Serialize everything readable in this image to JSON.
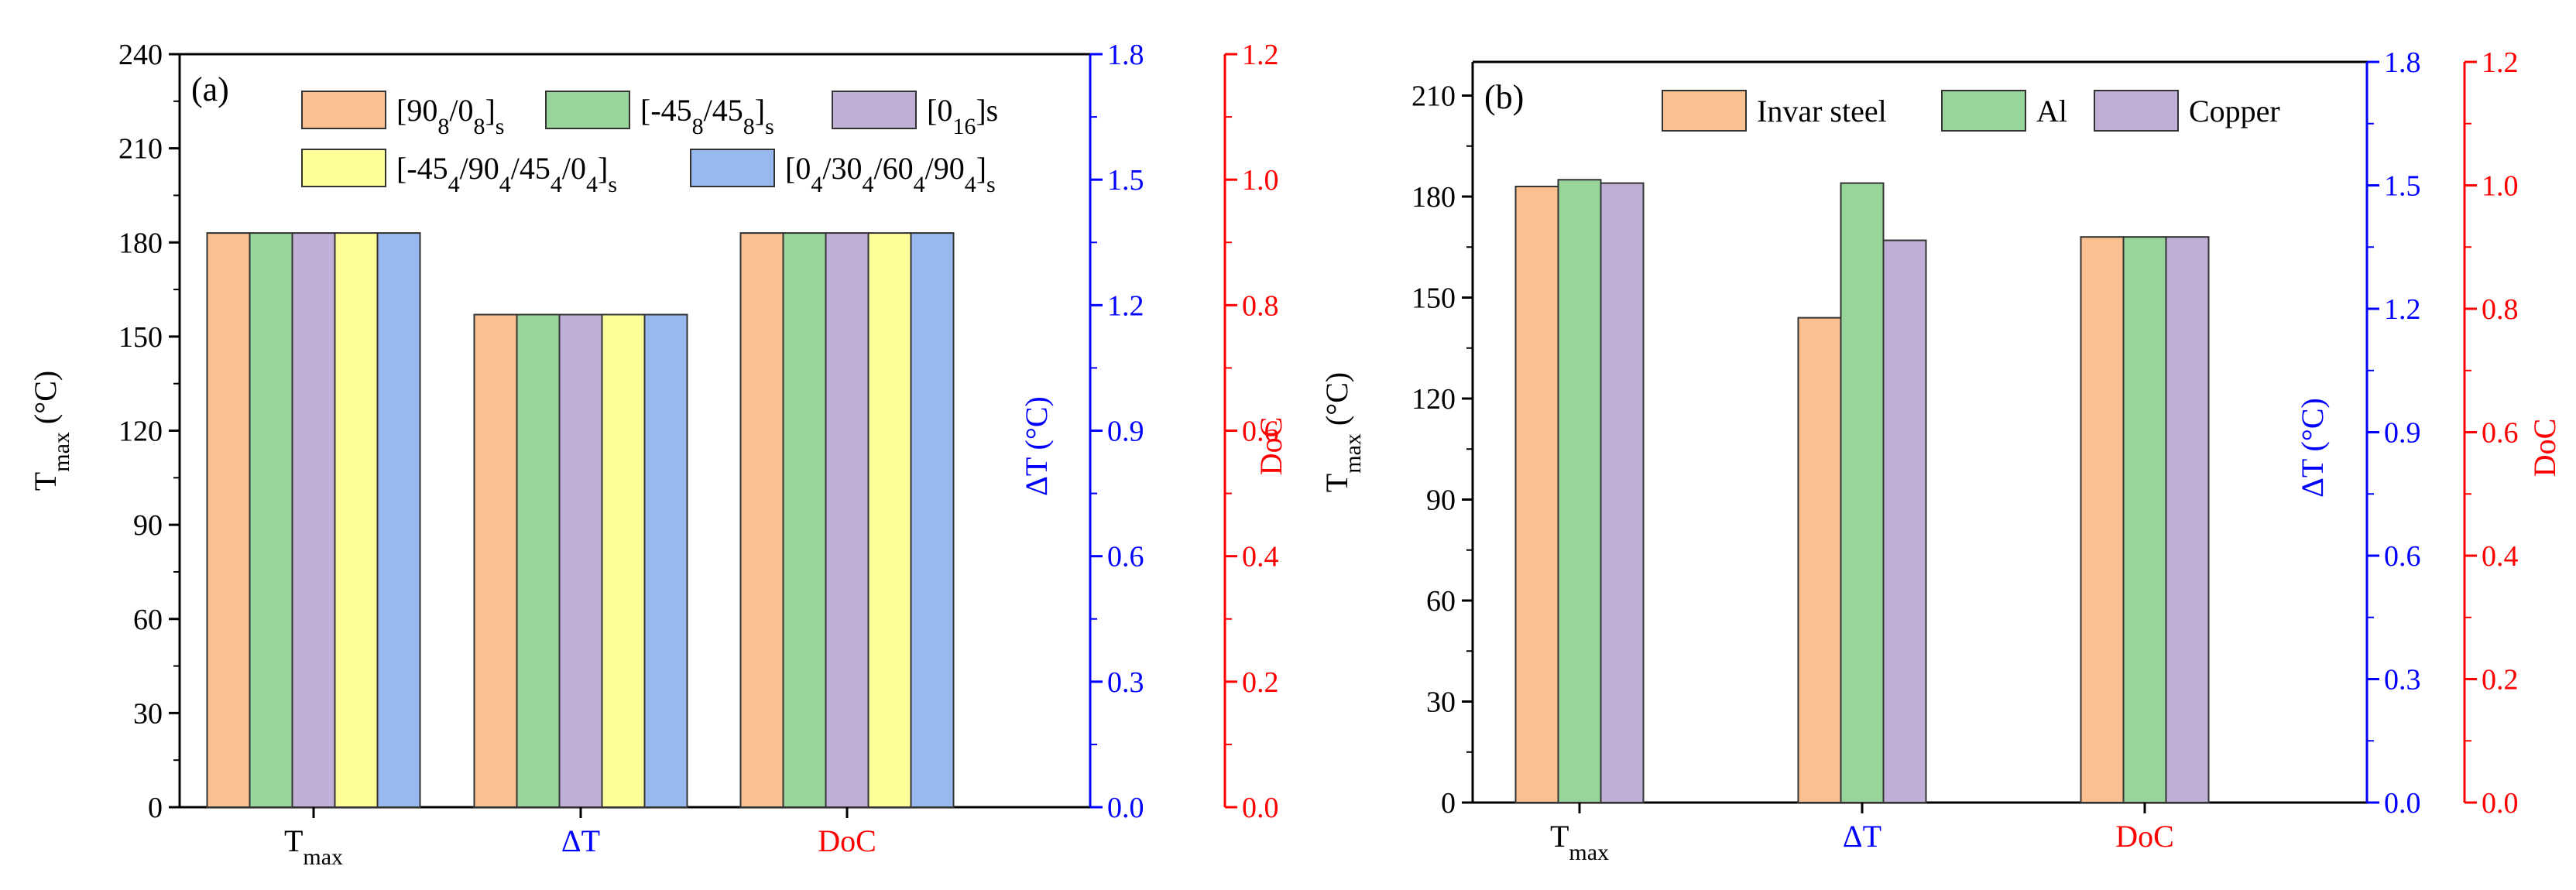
{
  "chart_data": [
    {
      "type": "bar",
      "panel_label": "(a)",
      "categories": [
        "T",
        "ΔT",
        "DoC"
      ],
      "category_subscripts": [
        "max",
        "",
        ""
      ],
      "category_colors": [
        "#000000",
        "#0000ff",
        "#ff0000"
      ],
      "series": [
        {
          "name": "[908/08]s",
          "legend_parts": [
            "[90",
            "8",
            "/0",
            "8",
            "]",
            "s"
          ],
          "color": "#fac090",
          "values": [
            183,
            157,
            183
          ]
        },
        {
          "name": "[-458/458]s",
          "legend_parts": [
            "[-45",
            "8",
            "/45",
            "8",
            "]",
            "s"
          ],
          "color": "#98d59a",
          "values": [
            183,
            157,
            183
          ]
        },
        {
          "name": "[016]s",
          "legend_parts": [
            "[0",
            "16",
            "]s"
          ],
          "color": "#c0b0d8",
          "values": [
            183,
            157,
            183
          ]
        },
        {
          "name": "[-454/904/454/04]s",
          "legend_parts": [
            "[-45",
            "4",
            "/90",
            "4",
            "/45",
            "4",
            "/0",
            "4",
            "]",
            "s"
          ],
          "color": "#ffff99",
          "values": [
            183,
            157,
            183
          ]
        },
        {
          "name": "[04/304/604/904]s",
          "legend_parts": [
            "[0",
            "4",
            "/30",
            "4",
            "/60",
            "4",
            "/90",
            "4",
            "]",
            "s"
          ],
          "color": "#98b8f0",
          "values": [
            183,
            157,
            183
          ]
        }
      ],
      "ylabel": "T",
      "ylabel_sub": "max",
      "ylabel_unit": "(°C)",
      "ylim": [
        0,
        240
      ],
      "yticks": [
        "0",
        "30",
        "60",
        "90",
        "120",
        "150",
        "180",
        "210",
        "240"
      ],
      "y2label": "ΔT (°C)",
      "y2lim": [
        0,
        1.8
      ],
      "y2ticks": [
        "0.0",
        "0.3",
        "0.6",
        "0.9",
        "1.2",
        "1.5",
        "1.8"
      ],
      "y3label": "DoC",
      "y3lim": [
        0,
        1.2
      ],
      "y3ticks": [
        "0.0",
        "0.2",
        "0.4",
        "0.6",
        "0.8",
        "1.0",
        "1.2"
      ],
      "legend_position": "top",
      "grid": false
    },
    {
      "type": "bar",
      "panel_label": "(b)",
      "categories": [
        "T",
        "ΔT",
        "DoC"
      ],
      "category_subscripts": [
        "max",
        "",
        ""
      ],
      "category_colors": [
        "#000000",
        "#0000ff",
        "#ff0000"
      ],
      "series": [
        {
          "name": "Invar steel",
          "legend_parts": [
            "Invar steel"
          ],
          "color": "#fac090",
          "values": [
            183,
            144,
            168
          ]
        },
        {
          "name": "Al",
          "legend_parts": [
            "Al"
          ],
          "color": "#98d59a",
          "values": [
            185,
            184,
            168
          ]
        },
        {
          "name": "Copper",
          "legend_parts": [
            "Copper"
          ],
          "color": "#c0b0d8",
          "values": [
            184,
            167,
            168
          ]
        }
      ],
      "ylabel": "T",
      "ylabel_sub": "max",
      "ylabel_unit": "(°C)",
      "ylim": [
        0,
        220
      ],
      "yticks": [
        "0",
        "30",
        "60",
        "90",
        "120",
        "150",
        "180",
        "210"
      ],
      "y2label": "ΔT (°C)",
      "y2lim": [
        0,
        1.8
      ],
      "y2ticks": [
        "0.0",
        "0.3",
        "0.6",
        "0.9",
        "1.2",
        "1.5",
        "1.8"
      ],
      "y3label": "DoC",
      "y3lim": [
        0,
        1.2
      ],
      "y3ticks": [
        "0.0",
        "0.2",
        "0.4",
        "0.6",
        "0.8",
        "1.0",
        "1.2"
      ],
      "legend_position": "top",
      "grid": false
    }
  ]
}
